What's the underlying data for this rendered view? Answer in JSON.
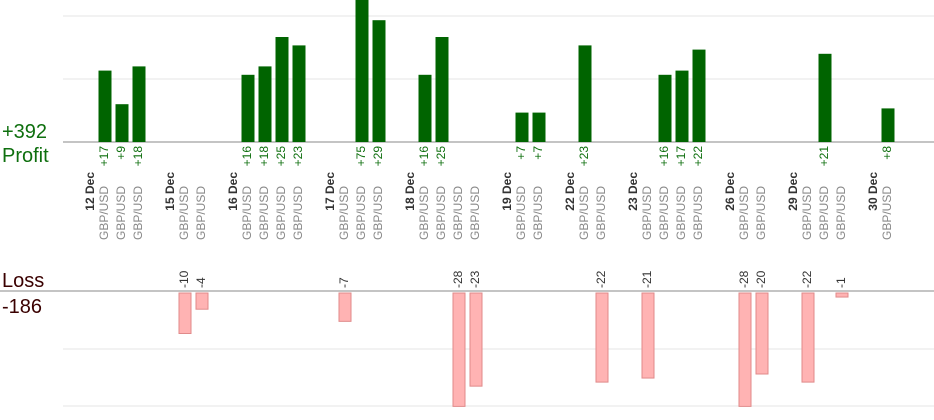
{
  "profit": {
    "total": "+392",
    "label": "Profit"
  },
  "loss": {
    "label": "Loss",
    "total": "-186"
  },
  "colors": {
    "profit_bar": "#006400",
    "profit_text": "#0e6f0e",
    "loss_bar": "#ffb3b3",
    "loss_border": "#e08a8a",
    "axis": "#888888",
    "grid": "#e6e6e6"
  },
  "chart_data": {
    "type": "bar",
    "days": [
      {
        "date": "12 Dec",
        "pairs": [
          "GBP/USD",
          "GBP/USD",
          "GBP/USD"
        ],
        "values": [
          17,
          9,
          18
        ]
      },
      {
        "date": "15 Dec",
        "pairs": [
          "GBP/USD",
          "GBP/USD"
        ],
        "values": [
          -10,
          -4
        ]
      },
      {
        "date": "16 Dec",
        "pairs": [
          "GBP/USD",
          "GBP/USD",
          "GBP/USD",
          "GBP/USD"
        ],
        "values": [
          16,
          18,
          25,
          23
        ]
      },
      {
        "date": "17 Dec",
        "pairs": [
          "GBP/USD",
          "GBP/USD",
          "GBP/USD"
        ],
        "values": [
          -7,
          75,
          29
        ]
      },
      {
        "date": "18 Dec",
        "pairs": [
          "GBP/USD",
          "GBP/USD",
          "GBP/USD",
          "GBP/USD"
        ],
        "values": [
          16,
          25,
          -28,
          -23
        ]
      },
      {
        "date": "19 Dec",
        "pairs": [
          "GBP/USD",
          "GBP/USD"
        ],
        "values": [
          7,
          7
        ]
      },
      {
        "date": "22 Dec",
        "pairs": [
          "GBP/USD",
          "GBP/USD"
        ],
        "values": [
          23,
          -22
        ]
      },
      {
        "date": "23 Dec",
        "pairs": [
          "GBP/USD",
          "GBP/USD",
          "GBP/USD",
          "GBP/USD"
        ],
        "values": [
          -21,
          16,
          17,
          22
        ]
      },
      {
        "date": "26 Dec",
        "pairs": [
          "GBP/USD",
          "GBP/USD"
        ],
        "values": [
          -28,
          -20
        ]
      },
      {
        "date": "29 Dec",
        "pairs": [
          "GBP/USD",
          "GBP/USD",
          "GBP/USD"
        ],
        "values": [
          -22,
          21,
          -1
        ]
      },
      {
        "date": "30 Dec",
        "pairs": [
          "GBP/USD"
        ],
        "values": [
          8
        ]
      }
    ],
    "grid": true
  }
}
